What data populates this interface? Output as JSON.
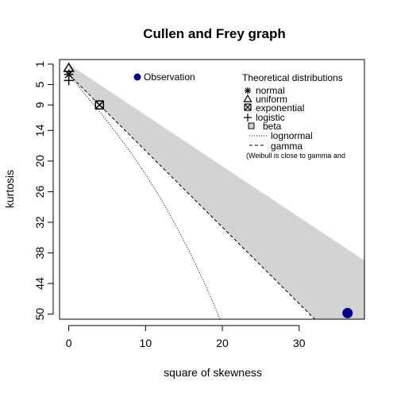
{
  "chart_data": {
    "type": "scatter",
    "title": "Cullen and Frey graph",
    "xlabel": "square of skewness",
    "ylabel": "kurtosis",
    "xlim": [
      -1.2,
      38.5
    ],
    "ylim": [
      51,
      0.1
    ],
    "x_ticks": [
      0,
      10,
      20,
      30
    ],
    "y_ticks": [
      1,
      5,
      9,
      14,
      20,
      26,
      32,
      38,
      44,
      50
    ],
    "y_axis_reversed": true,
    "observation": {
      "name": "Observation",
      "x": 36.3,
      "y": 49.8,
      "color": "#00008B"
    },
    "theoretical_points": [
      {
        "name": "normal",
        "symbol": "asterisk",
        "x": 0,
        "y": 3
      },
      {
        "name": "uniform",
        "symbol": "triangle",
        "x": 0,
        "y": 1.8
      },
      {
        "name": "exponential",
        "symbol": "crossed-square",
        "x": 4,
        "y": 9
      },
      {
        "name": "logistic",
        "symbol": "plus",
        "x": 0,
        "y": 4.2
      }
    ],
    "beta_region": {
      "name": "beta",
      "color": "#D3D3D3",
      "upper_boundary": [
        [
          0,
          1
        ],
        [
          38.5,
          39.5
        ]
      ],
      "lower_boundary": [
        [
          0,
          3
        ],
        [
          5,
          10.5
        ],
        [
          10,
          18
        ],
        [
          15,
          25.5
        ],
        [
          20,
          33
        ],
        [
          25,
          40.5
        ],
        [
          30,
          48
        ],
        [
          32.7,
          52
        ],
        [
          38.5,
          52
        ]
      ]
    },
    "lognormal_curve": {
      "name": "lognormal",
      "points": [
        [
          0,
          3
        ],
        [
          0.5,
          3.9
        ],
        [
          1,
          4.8
        ],
        [
          2,
          6.7
        ],
        [
          3,
          8.5
        ],
        [
          4,
          10.3
        ],
        [
          5,
          12.2
        ],
        [
          6,
          14.1
        ],
        [
          8,
          18.2
        ],
        [
          10,
          22.6
        ],
        [
          12,
          27.4
        ],
        [
          14,
          32.8
        ],
        [
          16,
          38.6
        ],
        [
          18,
          45
        ],
        [
          19.7,
          51
        ]
      ]
    },
    "gamma_line": {
      "name": "gamma",
      "points": [
        [
          0,
          3
        ],
        [
          32.7,
          52
        ]
      ]
    },
    "legend": {
      "observation_label": "Observation",
      "theoretical_title": "Theoretical distributions",
      "items": [
        "normal",
        "uniform",
        "exponential",
        "logistic",
        "beta",
        "lognormal",
        "gamma"
      ],
      "note": "(Weibull is close to gamma and"
    }
  }
}
